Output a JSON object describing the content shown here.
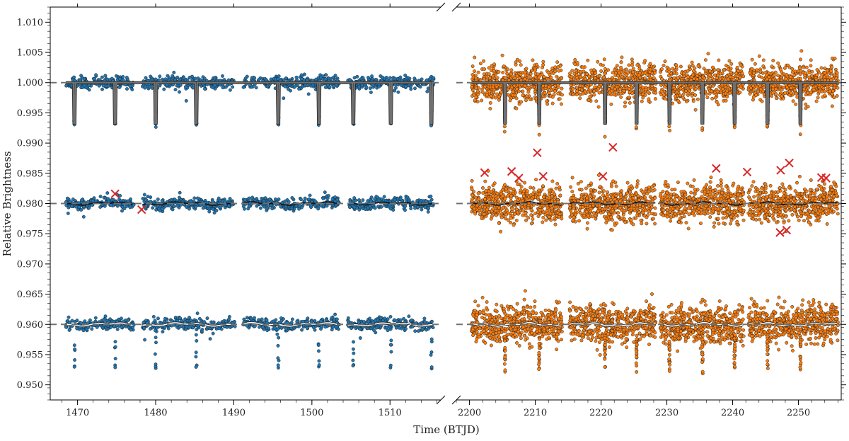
{
  "chart_data": {
    "type": "scatter",
    "title": "",
    "xlabel": "Time (BTJD)",
    "ylabel": "Relative Brightness",
    "ylim": [
      0.9475,
      1.0125
    ],
    "y_ticks": [
      "0.950",
      "0.955",
      "0.960",
      "0.965",
      "0.970",
      "0.975",
      "0.980",
      "0.985",
      "0.990",
      "0.995",
      "1.000",
      "1.005",
      "1.010"
    ],
    "broken_x_axis": true,
    "panels": [
      {
        "name": "sector-1",
        "xlim": [
          1466.5,
          1516.5
        ],
        "x_ticks": [
          "1470",
          "1480",
          "1490",
          "1500",
          "1510"
        ],
        "color": "#1f77b4",
        "segments": [
          [
            1468.5,
            1477.2
          ],
          [
            1478.3,
            1490.2
          ],
          [
            1491.2,
            1503.5
          ],
          [
            1504.6,
            1515.6
          ]
        ]
      },
      {
        "name": "sector-2",
        "xlim": [
          2198.0,
          2256.5
        ],
        "x_ticks": [
          "2200",
          "2210",
          "2220",
          "2230",
          "2240",
          "2250"
        ],
        "color": "#ff7f0e",
        "segments": [
          [
            2200.3,
            2214.1
          ],
          [
            2215.2,
            2228.3
          ],
          [
            2229.0,
            2241.7
          ],
          [
            2242.4,
            2256.0
          ]
        ]
      }
    ],
    "series": [
      {
        "name": "transit-light-curve",
        "baseline": 1.0,
        "panel_scatter": [
          0.0005,
          0.0017
        ],
        "model_line_color": "#707070",
        "transit_times": [
          1469.6,
          1474.8,
          1480.0,
          1485.2,
          1490.4,
          1495.7,
          1500.9,
          1505.3,
          1510.1,
          1515.3,
          2205.4,
          2210.6,
          2220.6,
          2225.4,
          2230.4,
          2235.4,
          2240.3,
          2245.3,
          2250.3
        ],
        "transit_depth": 0.0067
      },
      {
        "name": "detrended-residuals",
        "baseline": 0.98,
        "panel_scatter": [
          0.0005,
          0.0017
        ],
        "model_line_color": "#111111",
        "outliers": [
          [
            1474.8,
            0.9816
          ],
          [
            1478.2,
            0.979
          ],
          [
            2202.3,
            0.9851
          ],
          [
            2206.4,
            0.9853
          ],
          [
            2207.5,
            0.9842
          ],
          [
            2210.3,
            0.9884
          ],
          [
            2211.2,
            0.9845
          ],
          [
            2220.3,
            0.9845
          ],
          [
            2221.8,
            0.9893
          ],
          [
            2237.5,
            0.9858
          ],
          [
            2242.2,
            0.9852
          ],
          [
            2247.2,
            0.9752
          ],
          [
            2247.3,
            0.9855
          ],
          [
            2248.2,
            0.9756
          ],
          [
            2248.6,
            0.9867
          ],
          [
            2253.5,
            0.9843
          ],
          [
            2254.2,
            0.9842
          ]
        ]
      },
      {
        "name": "trend-removed-transits",
        "baseline": 0.96,
        "panel_scatter": [
          0.0005,
          0.0017
        ],
        "model_line_color": "#ffffff",
        "transit_times": [
          1469.6,
          1474.8,
          1480.0,
          1485.2,
          1490.4,
          1495.7,
          1500.9,
          1505.3,
          1510.1,
          1515.3,
          2205.4,
          2210.6,
          2220.6,
          2225.4,
          2230.4,
          2235.4,
          2240.3,
          2245.3,
          2250.3
        ],
        "transit_depth": 0.0067
      }
    ],
    "reference_lines": [
      1.0,
      0.98,
      0.96
    ]
  }
}
